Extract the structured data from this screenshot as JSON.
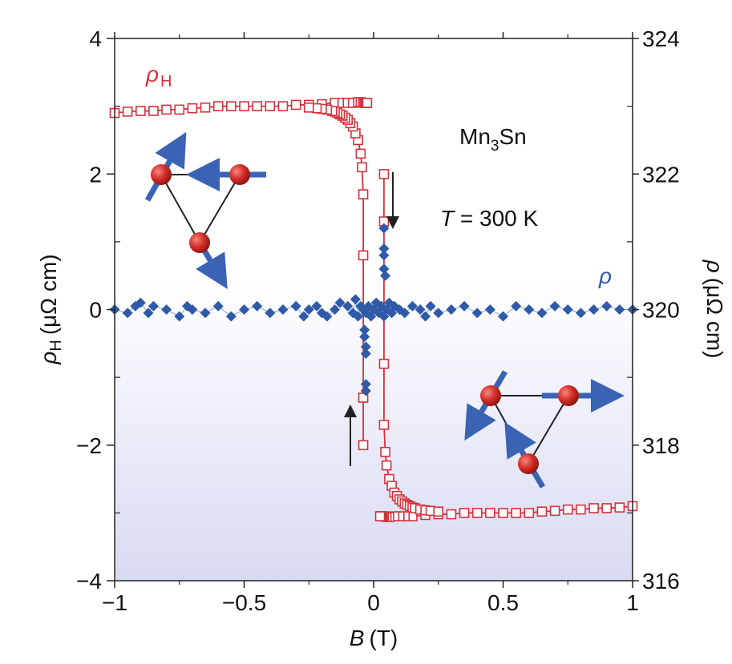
{
  "chart_data": {
    "type": "scatter",
    "x_axis": {
      "label_var": "B",
      "label_unit": "(T)",
      "range": [
        -1,
        1
      ],
      "ticks": [
        -1,
        -0.5,
        0,
        0.5,
        1
      ],
      "tick_labels": [
        "−1",
        "−0.5",
        "0",
        "0.5",
        "1"
      ]
    },
    "y_left": {
      "label_var": "ρ",
      "label_sub": "H",
      "label_unit": "(μΩ cm)",
      "range": [
        -4,
        4
      ],
      "ticks": [
        -4,
        -2,
        0,
        2,
        4
      ],
      "tick_labels": [
        "−4",
        "−2",
        "0",
        "2",
        "4"
      ]
    },
    "y_right": {
      "label_var": "ρ",
      "label_unit": "(μΩ cm)",
      "range": [
        316,
        324
      ],
      "ticks": [
        316,
        318,
        320,
        322,
        324
      ],
      "tick_labels": [
        "316",
        "318",
        "320",
        "322",
        "324"
      ]
    },
    "series": [
      {
        "name": "ρH",
        "axis": "left",
        "marker": "open-square",
        "color": "#d6313d",
        "segments": [
          {
            "x": [
              -1.0,
              -0.95,
              -0.9,
              -0.85,
              -0.8,
              -0.75,
              -0.7,
              -0.65,
              -0.6,
              -0.55,
              -0.5,
              -0.45,
              -0.4,
              -0.35,
              -0.3,
              -0.25,
              -0.2,
              -0.15,
              -0.12,
              -0.1,
              -0.08,
              -0.06,
              -0.05,
              -0.04,
              -0.035,
              -0.03,
              -0.027,
              -0.025
            ],
            "y": [
              2.9,
              2.92,
              2.93,
              2.93,
              2.95,
              2.95,
              2.97,
              2.98,
              3.0,
              3.0,
              3.0,
              3.0,
              3.0,
              3.0,
              3.02,
              3.02,
              3.03,
              3.05,
              3.05,
              3.05,
              3.05,
              3.06,
              3.06,
              3.05,
              3.05,
              3.05,
              3.05,
              3.05
            ]
          },
          {
            "x": [
              1.0,
              0.95,
              0.9,
              0.85,
              0.8,
              0.75,
              0.7,
              0.65,
              0.6,
              0.55,
              0.5,
              0.45,
              0.4,
              0.35,
              0.3,
              0.25,
              0.2,
              0.15,
              0.12,
              0.1,
              0.08,
              0.06,
              0.05,
              0.04,
              0.035,
              0.03,
              0.027,
              0.025
            ],
            "y": [
              -2.9,
              -2.92,
              -2.93,
              -2.93,
              -2.95,
              -2.95,
              -2.97,
              -2.98,
              -3.0,
              -3.0,
              -3.0,
              -3.0,
              -3.0,
              -3.0,
              -3.02,
              -3.02,
              -3.03,
              -3.05,
              -3.05,
              -3.05,
              -3.05,
              -3.06,
              -3.06,
              -3.05,
              -3.05,
              -3.05,
              -3.05,
              -3.05
            ]
          },
          {
            "x": [
              0.04,
              0.04,
              0.04,
              0.04,
              0.045,
              0.05,
              0.06,
              0.07,
              0.08,
              0.09,
              0.1,
              0.11,
              0.12,
              0.13,
              0.14,
              0.15,
              0.16,
              0.18,
              0.2,
              0.22,
              0.25
            ],
            "y": [
              2.0,
              1.3,
              -0.8,
              -1.7,
              -2.1,
              -2.3,
              -2.5,
              -2.6,
              -2.7,
              -2.75,
              -2.8,
              -2.83,
              -2.86,
              -2.88,
              -2.9,
              -2.92,
              -2.93,
              -2.95,
              -2.96,
              -2.97,
              -2.98
            ]
          },
          {
            "x": [
              -0.04,
              -0.04,
              -0.04,
              -0.04,
              -0.045,
              -0.05,
              -0.06,
              -0.07,
              -0.08,
              -0.09,
              -0.1,
              -0.11,
              -0.12,
              -0.13,
              -0.14,
              -0.15,
              -0.16,
              -0.18,
              -0.2,
              -0.22,
              -0.25
            ],
            "y": [
              -2.0,
              -1.3,
              0.8,
              1.7,
              2.1,
              2.3,
              2.5,
              2.6,
              2.7,
              2.75,
              2.8,
              2.83,
              2.86,
              2.88,
              2.9,
              2.92,
              2.93,
              2.95,
              2.96,
              2.97,
              2.98
            ]
          }
        ]
      },
      {
        "name": "ρ",
        "axis": "right",
        "marker": "filled-diamond",
        "color": "#2e5aa8",
        "x": [
          -1.0,
          -0.95,
          -0.92,
          -0.9,
          -0.87,
          -0.85,
          -0.8,
          -0.75,
          -0.72,
          -0.7,
          -0.65,
          -0.6,
          -0.55,
          -0.5,
          -0.45,
          -0.4,
          -0.35,
          -0.3,
          -0.27,
          -0.25,
          -0.22,
          -0.2,
          -0.18,
          -0.15,
          -0.13,
          -0.1,
          -0.08,
          -0.07,
          -0.06,
          -0.05,
          -0.04,
          -0.03,
          -0.02,
          -0.01,
          0.0,
          0.01,
          0.02,
          0.03,
          0.04,
          0.05,
          0.06,
          0.07,
          0.08,
          0.1,
          0.12,
          0.15,
          0.18,
          0.2,
          0.22,
          0.25,
          0.3,
          0.35,
          0.4,
          0.45,
          0.5,
          0.55,
          0.6,
          0.65,
          0.7,
          0.75,
          0.8,
          0.85,
          0.9,
          0.95,
          1.0,
          -0.03,
          -0.03,
          -0.03,
          -0.03,
          -0.035,
          -0.035,
          0.04,
          0.04,
          0.04,
          0.045,
          0.04
        ],
        "y": [
          320.0,
          319.95,
          320.05,
          320.1,
          319.95,
          320.05,
          320.0,
          319.9,
          320.05,
          320.0,
          319.95,
          320.05,
          319.9,
          320.0,
          320.05,
          319.95,
          320.0,
          320.05,
          319.9,
          320.0,
          320.05,
          319.95,
          319.9,
          320.0,
          320.1,
          320.05,
          319.95,
          320.15,
          319.9,
          320.05,
          320.0,
          319.95,
          320.05,
          319.9,
          320.0,
          320.1,
          319.95,
          320.05,
          319.9,
          320.0,
          320.1,
          319.95,
          320.05,
          320.0,
          319.95,
          320.05,
          320.0,
          319.9,
          320.05,
          319.95,
          320.0,
          320.05,
          319.95,
          320.0,
          319.9,
          320.05,
          320.0,
          319.95,
          320.05,
          320.0,
          319.95,
          320.0,
          320.05,
          320.0,
          320.0,
          319.35,
          319.45,
          318.9,
          318.8,
          319.6,
          319.7,
          321.2,
          320.9,
          320.6,
          320.5,
          320.8
        ]
      }
    ],
    "annotations": {
      "series_label_rhoH_var": "ρ",
      "series_label_rhoH_sub": "H",
      "series_label_rho": "ρ",
      "material_main": "Mn",
      "material_sub": "3",
      "material_tail": "Sn",
      "temperature_var": "T",
      "temperature_text": " = 300 K"
    },
    "grid": false,
    "legend": "none",
    "background_gradient": {
      "from": "#ffffff",
      "to": "#d8daf2"
    }
  }
}
